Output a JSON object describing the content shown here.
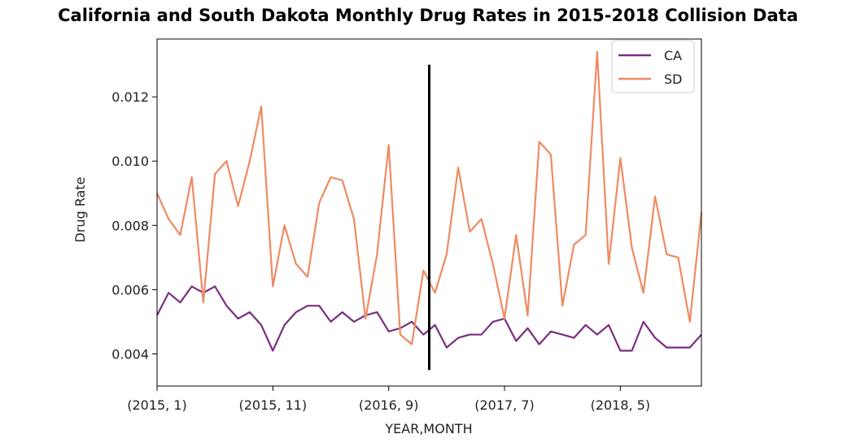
{
  "chart_data": {
    "type": "line",
    "title": "California and South Dakota Monthly Drug Rates in 2015-2018 Collision Data",
    "xlabel": "YEAR,MONTH",
    "ylabel": "Drug Rate",
    "ylim": [
      0.003,
      0.0138
    ],
    "x_tick_labels": [
      "(2015, 1)",
      "(2015, 11)",
      "(2016, 9)",
      "(2017, 7)",
      "(2018, 5)"
    ],
    "y_tick_labels": [
      "0.004",
      "0.006",
      "0.008",
      "0.010",
      "0.012"
    ],
    "y_ticks": [
      0.004,
      0.006,
      0.008,
      0.01,
      0.012
    ],
    "legend_position": "top-right",
    "grid": false,
    "vertical_line": {
      "x_index": 23,
      "y_range": [
        0.0035,
        0.013
      ],
      "color": "#000000"
    },
    "categories": [
      "(2015, 1)",
      "(2015, 2)",
      "(2015, 3)",
      "(2015, 4)",
      "(2015, 5)",
      "(2015, 6)",
      "(2015, 7)",
      "(2015, 8)",
      "(2015, 9)",
      "(2015, 10)",
      "(2015, 11)",
      "(2015, 12)",
      "(2016, 1)",
      "(2016, 2)",
      "(2016, 3)",
      "(2016, 4)",
      "(2016, 5)",
      "(2016, 6)",
      "(2016, 7)",
      "(2016, 8)",
      "(2016, 9)",
      "(2016, 10)",
      "(2016, 11)",
      "(2016, 12)",
      "(2017, 1)",
      "(2017, 2)",
      "(2017, 3)",
      "(2017, 4)",
      "(2017, 5)",
      "(2017, 6)",
      "(2017, 7)",
      "(2017, 8)",
      "(2017, 9)",
      "(2017, 10)",
      "(2017, 11)",
      "(2017, 12)",
      "(2018, 1)",
      "(2018, 2)",
      "(2018, 3)",
      "(2018, 4)",
      "(2018, 5)",
      "(2018, 6)",
      "(2018, 7)",
      "(2018, 8)",
      "(2018, 9)",
      "(2018, 10)",
      "(2018, 11)",
      "(2018, 12)"
    ],
    "series": [
      {
        "name": "CA",
        "color": "#7a2e80",
        "values": [
          0.0052,
          0.0059,
          0.0056,
          0.0061,
          0.0059,
          0.0061,
          0.0055,
          0.0051,
          0.0053,
          0.0049,
          0.0041,
          0.0049,
          0.0053,
          0.0055,
          0.0055,
          0.005,
          0.0053,
          0.005,
          0.0052,
          0.0053,
          0.0047,
          0.0048,
          0.005,
          0.0046,
          0.0049,
          0.0042,
          0.0045,
          0.0046,
          0.0046,
          0.005,
          0.0051,
          0.0044,
          0.0048,
          0.0043,
          0.0047,
          0.0046,
          0.0045,
          0.0049,
          0.0046,
          0.0049,
          0.0041,
          0.0041,
          0.005,
          0.0045,
          0.0042,
          0.0042,
          0.0042,
          0.0046
        ]
      },
      {
        "name": "SD",
        "color": "#ef8a62",
        "values": [
          0.009,
          0.0082,
          0.0077,
          0.0095,
          0.0056,
          0.0096,
          0.01,
          0.0086,
          0.01,
          0.0117,
          0.0061,
          0.008,
          0.0068,
          0.0064,
          0.0087,
          0.0095,
          0.0094,
          0.0082,
          0.0051,
          0.0071,
          0.0105,
          0.0046,
          0.0043,
          0.0066,
          0.0059,
          0.0071,
          0.0098,
          0.0078,
          0.0082,
          0.0068,
          0.0051,
          0.0077,
          0.0052,
          0.0106,
          0.0102,
          0.0055,
          0.0074,
          0.0077,
          0.0134,
          0.0068,
          0.0101,
          0.0073,
          0.0059,
          0.0089,
          0.0071,
          0.007,
          0.005,
          0.0084
        ]
      }
    ]
  }
}
